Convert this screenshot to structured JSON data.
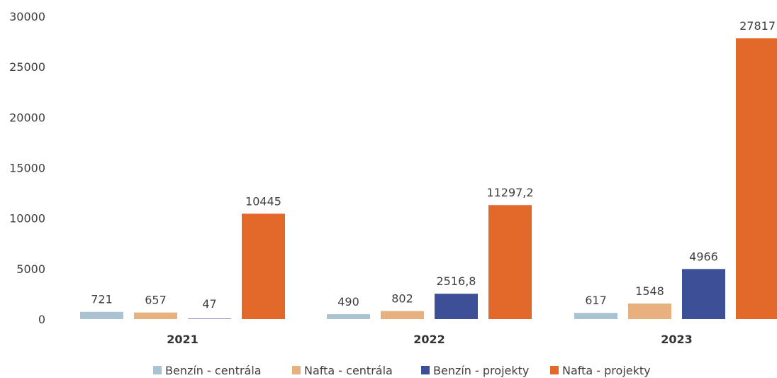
{
  "chart_data": {
    "type": "bar",
    "categories": [
      "2021",
      "2022",
      "2023"
    ],
    "series": [
      {
        "name": "Benzín - centrála",
        "color": "#a9c3d3",
        "values": [
          721,
          490,
          617
        ],
        "labels": [
          "721",
          "490",
          "617"
        ]
      },
      {
        "name": "Nafta - centrála",
        "color": "#e6b17f",
        "values": [
          657,
          802,
          1548
        ],
        "labels": [
          "657",
          "802",
          "1548"
        ]
      },
      {
        "name": "Benzín - projekty",
        "color": "#3c4f97",
        "values": [
          47,
          2516.8,
          4966
        ],
        "labels": [
          "47",
          "2516,8",
          "4966"
        ]
      },
      {
        "name": "Nafta - projekty",
        "color": "#e2692a",
        "values": [
          10445,
          11297.2,
          27817
        ],
        "labels": [
          "10445",
          "11297,2",
          "27817"
        ]
      }
    ],
    "ylim": [
      0,
      30000
    ],
    "yticks": [
      0,
      5000,
      10000,
      15000,
      20000,
      25000,
      30000
    ],
    "ytick_labels": [
      "0",
      "5000",
      "10000",
      "15000",
      "20000",
      "25000",
      "30000"
    ],
    "grid": false,
    "legend_position": "bottom"
  }
}
